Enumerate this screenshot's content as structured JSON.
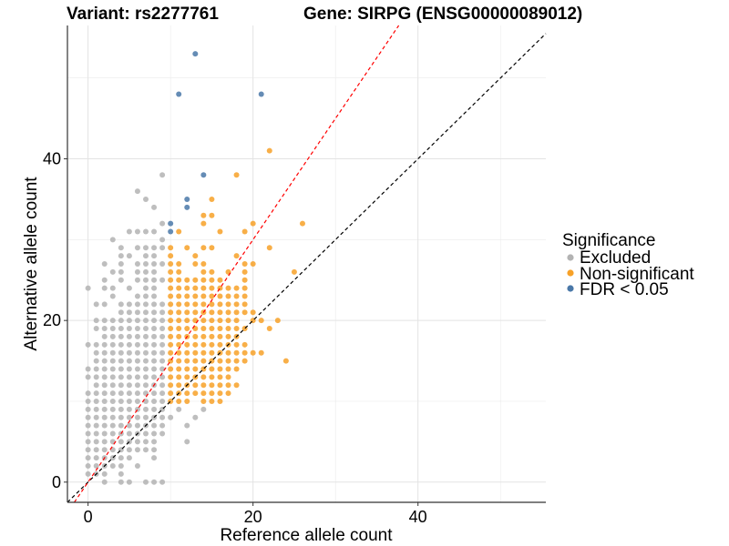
{
  "chart_data": {
    "type": "scatter",
    "title_left": "Variant: rs2277761",
    "title_right": "Gene: SIRPG (ENSG00000089012)",
    "xlabel": "Reference allele count",
    "ylabel": "Alternative allele count",
    "xlim": [
      -2.5,
      55.5
    ],
    "ylim": [
      -2.5,
      56.5
    ],
    "x_ticks": [
      0,
      20,
      40
    ],
    "y_ticks": [
      0,
      20,
      40
    ],
    "x_minor_grid": [
      10,
      30,
      50
    ],
    "y_minor_grid": [
      10,
      30,
      50
    ],
    "grid": true,
    "reference_lines": [
      {
        "name": "identity",
        "slope": 1.0,
        "intercept": 0,
        "color": "#000000",
        "style": "dashed"
      },
      {
        "name": "fitted-ratio",
        "slope": 1.5,
        "intercept": 0,
        "color": "#ff0000",
        "style": "dashed"
      }
    ],
    "legend": {
      "title": "Significance",
      "position": "right",
      "entries": [
        {
          "label": "Excluded",
          "color": "#b3b3b3"
        },
        {
          "label": "Non-significant",
          "color": "#f7a128"
        },
        {
          "label": "FDR < 0.05",
          "color": "#4a78a8"
        }
      ]
    },
    "series": [
      {
        "name": "Excluded",
        "color": "#b3b3b3",
        "rows": [
          {
            "y": 38,
            "x": [
              9
            ]
          },
          {
            "y": 36,
            "x": [
              6
            ]
          },
          {
            "y": 35,
            "x": [
              7
            ]
          },
          {
            "y": 34,
            "x": [
              8
            ]
          },
          {
            "y": 32,
            "x": [
              9
            ]
          },
          {
            "y": 31,
            "x": [
              5,
              6,
              7,
              8
            ]
          },
          {
            "y": 30,
            "x": [
              3,
              9
            ]
          },
          {
            "y": 29,
            "x": [
              4,
              6,
              7,
              8,
              9
            ]
          },
          {
            "y": 28,
            "x": [
              4,
              5,
              7,
              8
            ]
          },
          {
            "y": 27,
            "x": [
              2,
              4,
              6,
              7,
              8,
              9
            ]
          },
          {
            "y": 26,
            "x": [
              3,
              4,
              6,
              7,
              8
            ]
          },
          {
            "y": 25,
            "x": [
              2,
              4,
              6,
              7,
              8,
              9
            ]
          },
          {
            "y": 24,
            "x": [
              0,
              2,
              3,
              5,
              7,
              8
            ]
          },
          {
            "y": 23,
            "x": [
              3,
              6,
              7,
              8
            ]
          },
          {
            "y": 22,
            "x": [
              1,
              2,
              4,
              5,
              6,
              7,
              8,
              9
            ]
          },
          {
            "y": 21,
            "x": [
              4,
              5,
              6,
              7,
              8,
              9
            ]
          },
          {
            "y": 20,
            "x": [
              1,
              2,
              3,
              4,
              5,
              6,
              7,
              8,
              9
            ]
          },
          {
            "y": 19,
            "x": [
              1,
              2,
              3,
              4,
              5,
              6,
              7,
              8,
              9
            ]
          },
          {
            "y": 18,
            "x": [
              2,
              3,
              4,
              5,
              6,
              7,
              8,
              9
            ]
          },
          {
            "y": 17,
            "x": [
              0,
              1,
              2,
              3,
              4,
              5,
              6,
              7,
              8,
              9
            ]
          },
          {
            "y": 16,
            "x": [
              1,
              2,
              3,
              4,
              5,
              6,
              7,
              8,
              9
            ]
          },
          {
            "y": 15,
            "x": [
              1,
              2,
              3,
              4,
              5,
              6,
              7,
              8,
              9
            ]
          },
          {
            "y": 14,
            "x": [
              0,
              1,
              2,
              3,
              4,
              5,
              6,
              7,
              8,
              9
            ]
          },
          {
            "y": 13,
            "x": [
              0,
              1,
              2,
              3,
              4,
              5,
              6,
              7,
              8,
              9
            ]
          },
          {
            "y": 12,
            "x": [
              1,
              2,
              3,
              4,
              5,
              6,
              7,
              8,
              9
            ]
          },
          {
            "y": 11,
            "x": [
              0,
              1,
              2,
              3,
              4,
              5,
              6,
              7,
              8,
              9
            ]
          },
          {
            "y": 10,
            "x": [
              0,
              1,
              2,
              3,
              4,
              5,
              6,
              7,
              8,
              9
            ]
          },
          {
            "y": 9,
            "x": [
              0,
              1,
              2,
              3,
              4,
              5,
              6,
              7,
              8,
              9,
              11,
              14
            ]
          },
          {
            "y": 8,
            "x": [
              0,
              1,
              2,
              3,
              4,
              5,
              6,
              7,
              8,
              9,
              10,
              13
            ]
          },
          {
            "y": 7,
            "x": [
              0,
              1,
              2,
              3,
              4,
              5,
              6,
              7,
              8,
              9,
              12
            ]
          },
          {
            "y": 6,
            "x": [
              0,
              1,
              2,
              3,
              4,
              5,
              6,
              7,
              8,
              9
            ]
          },
          {
            "y": 5,
            "x": [
              0,
              1,
              2,
              3,
              4,
              5,
              6,
              7,
              8,
              12
            ]
          },
          {
            "y": 4,
            "x": [
              0,
              1,
              2,
              3,
              4,
              5,
              6,
              7,
              8
            ]
          },
          {
            "y": 3,
            "x": [
              0,
              1,
              2,
              3,
              4,
              5,
              8
            ]
          },
          {
            "y": 2,
            "x": [
              0,
              1,
              2,
              3,
              4,
              6
            ]
          },
          {
            "y": 1,
            "x": [
              0,
              1,
              2,
              4
            ]
          },
          {
            "y": 0,
            "x": [
              2,
              4,
              5,
              7,
              8,
              9
            ]
          }
        ]
      },
      {
        "name": "Non-significant",
        "color": "#f7a128",
        "rows": [
          {
            "y": 41,
            "x": [
              22
            ]
          },
          {
            "y": 38,
            "x": [
              18
            ]
          },
          {
            "y": 35,
            "x": [
              15
            ]
          },
          {
            "y": 33,
            "x": [
              14,
              15
            ]
          },
          {
            "y": 32,
            "x": [
              14,
              20,
              26
            ]
          },
          {
            "y": 31,
            "x": [
              11,
              16,
              19
            ]
          },
          {
            "y": 29,
            "x": [
              10,
              12,
              14,
              15,
              22
            ]
          },
          {
            "y": 28,
            "x": [
              10,
              13,
              18
            ]
          },
          {
            "y": 27,
            "x": [
              10,
              11,
              13,
              14,
              19,
              20
            ]
          },
          {
            "y": 26,
            "x": [
              10,
              11,
              14,
              15,
              17,
              19,
              25
            ]
          },
          {
            "y": 25,
            "x": [
              10,
              11,
              12,
              13,
              14,
              15,
              16,
              19
            ]
          },
          {
            "y": 24,
            "x": [
              10,
              11,
              12,
              13,
              14,
              15,
              16,
              17,
              18,
              19
            ]
          },
          {
            "y": 23,
            "x": [
              10,
              11,
              12,
              13,
              14,
              15,
              16,
              17,
              18,
              19
            ]
          },
          {
            "y": 22,
            "x": [
              10,
              11,
              12,
              13,
              14,
              15,
              16,
              17,
              18,
              19
            ]
          },
          {
            "y": 21,
            "x": [
              10,
              11,
              12,
              13,
              14,
              15,
              16,
              17,
              18,
              19,
              20
            ]
          },
          {
            "y": 20,
            "x": [
              10,
              11,
              12,
              13,
              14,
              15,
              16,
              17,
              18,
              20,
              21,
              23
            ]
          },
          {
            "y": 19,
            "x": [
              10,
              11,
              12,
              13,
              14,
              15,
              16,
              17,
              18,
              19,
              22
            ]
          },
          {
            "y": 18,
            "x": [
              10,
              11,
              12,
              13,
              14,
              15,
              16,
              17,
              18
            ]
          },
          {
            "y": 17,
            "x": [
              10,
              11,
              12,
              13,
              14,
              15,
              16,
              17,
              18,
              19
            ]
          },
          {
            "y": 16,
            "x": [
              10,
              11,
              12,
              13,
              14,
              15,
              16,
              17,
              18,
              19,
              20,
              21
            ]
          },
          {
            "y": 15,
            "x": [
              10,
              11,
              12,
              13,
              14,
              15,
              16,
              17,
              18,
              19,
              24
            ]
          },
          {
            "y": 14,
            "x": [
              10,
              11,
              12,
              13,
              14,
              15,
              16,
              17,
              18
            ]
          },
          {
            "y": 13,
            "x": [
              10,
              11,
              12,
              13,
              14,
              15,
              16,
              17
            ]
          },
          {
            "y": 12,
            "x": [
              10,
              11,
              12,
              13,
              14,
              15,
              16,
              17,
              18
            ]
          },
          {
            "y": 11,
            "x": [
              10,
              11,
              12,
              13,
              14,
              15,
              16,
              17
            ]
          },
          {
            "y": 10,
            "x": [
              10,
              11,
              12,
              14,
              15,
              16
            ]
          }
        ]
      },
      {
        "name": "FDR < 0.05",
        "color": "#4a78a8",
        "rows": [
          {
            "y": 53,
            "x": [
              13
            ]
          },
          {
            "y": 48,
            "x": [
              11,
              21
            ]
          },
          {
            "y": 38,
            "x": [
              14
            ]
          },
          {
            "y": 35,
            "x": [
              12
            ]
          },
          {
            "y": 34,
            "x": [
              12
            ]
          },
          {
            "y": 32,
            "x": [
              10
            ]
          },
          {
            "y": 31,
            "x": [
              10
            ]
          }
        ]
      }
    ]
  }
}
